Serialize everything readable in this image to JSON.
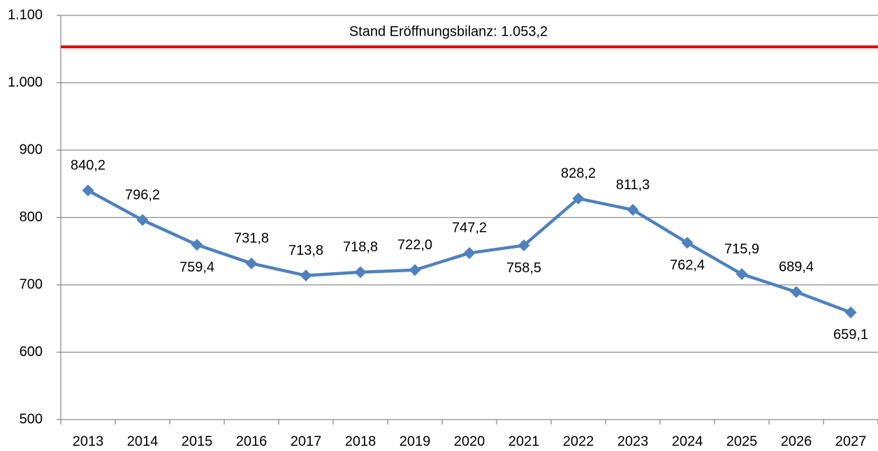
{
  "chart_data": {
    "type": "line",
    "categories": [
      "2013",
      "2014",
      "2015",
      "2016",
      "2017",
      "2018",
      "2019",
      "2020",
      "2021",
      "2022",
      "2023",
      "2024",
      "2025",
      "2026",
      "2027"
    ],
    "series": [
      {
        "color": "#4f81bd",
        "values": [
          840.2,
          796.2,
          759.4,
          731.8,
          713.8,
          718.8,
          722.0,
          747.2,
          758.5,
          828.2,
          811.3,
          762.4,
          715.9,
          689.4,
          659.1
        ],
        "value_labels": [
          "840,2",
          "796,2",
          "759,4",
          "731,8",
          "713,8",
          "718,8",
          "722,0",
          "747,2",
          "758,5",
          "828,2",
          "811,3",
          "762,4",
          "715,9",
          "689,4",
          "659,1"
        ]
      }
    ],
    "ylim": [
      500,
      1100
    ],
    "yticks": [
      500,
      600,
      700,
      800,
      900,
      {
        "value": 1000,
        "label": "1.000"
      },
      {
        "value": 1100,
        "label": "1.100"
      }
    ],
    "grid": true,
    "reference_line": {
      "value": 1053.2,
      "label": "Stand Eröffnungsbilanz: 1.053,2",
      "color": "#e00000"
    }
  }
}
